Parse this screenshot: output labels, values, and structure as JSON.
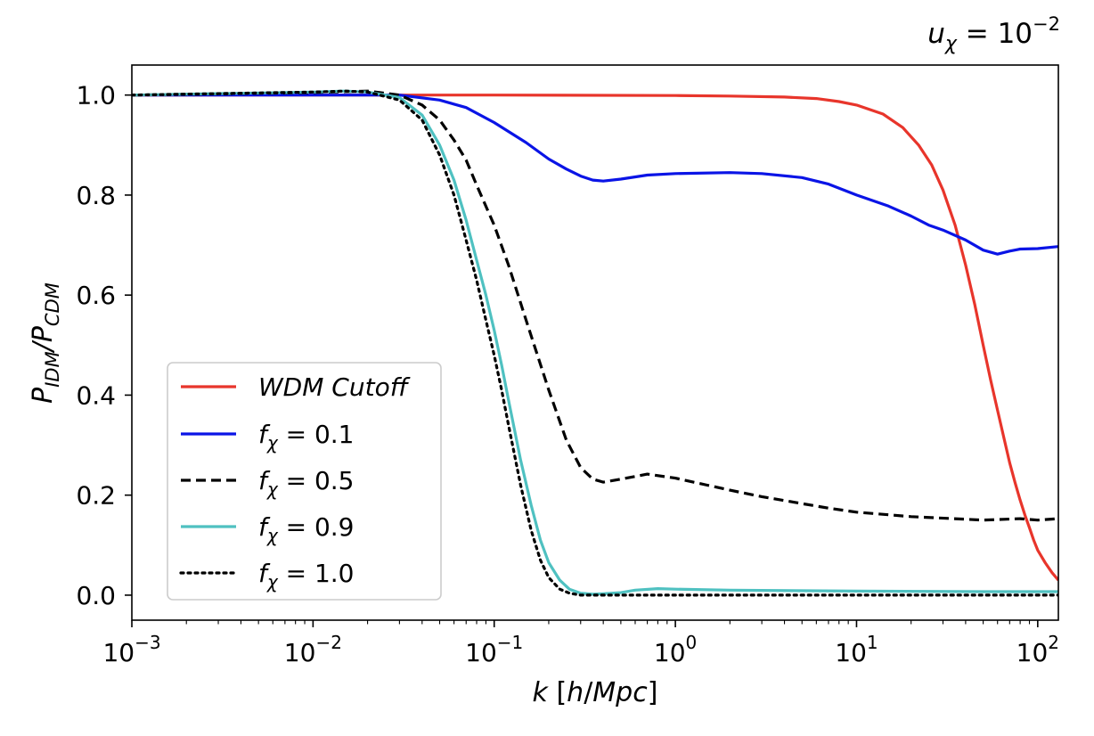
{
  "chart_data": {
    "type": "line",
    "title": "u_χ = 10^-2",
    "xlabel": "k [h/Mpc]",
    "ylabel": "P_IDM/P_CDM",
    "xscale": "log",
    "xlim": [
      0.001,
      130
    ],
    "ylim": [
      -0.05,
      1.06
    ],
    "xticks": [
      0.001,
      0.01,
      0.1,
      1,
      10,
      100
    ],
    "xtick_labels": [
      {
        "base": "10",
        "exp": "−3"
      },
      {
        "base": "10",
        "exp": "−2"
      },
      {
        "base": "10",
        "exp": "−1"
      },
      {
        "base": "10",
        "exp": "0"
      },
      {
        "base": "10",
        "exp": "1"
      },
      {
        "base": "10",
        "exp": "2"
      }
    ],
    "yticks": [
      0.0,
      0.2,
      0.4,
      0.6,
      0.8,
      1.0
    ],
    "ytick_labels": [
      "0.0",
      "0.2",
      "0.4",
      "0.6",
      "0.8",
      "1.0"
    ],
    "grid": false,
    "legend_position": "lower-left",
    "series": [
      {
        "name": "WDM Cutoff",
        "color": "#e8352b",
        "style": "solid",
        "x": [
          0.001,
          0.01,
          0.1,
          1,
          2,
          4,
          6,
          8,
          10,
          14,
          18,
          22,
          26,
          30,
          35,
          40,
          45,
          50,
          55,
          60,
          65,
          70,
          75,
          80,
          85,
          90,
          95,
          100,
          110,
          120,
          130
        ],
        "y": [
          1.0,
          1.0,
          1.0,
          0.999,
          0.998,
          0.996,
          0.993,
          0.987,
          0.98,
          0.962,
          0.935,
          0.9,
          0.86,
          0.81,
          0.74,
          0.66,
          0.58,
          0.5,
          0.43,
          0.37,
          0.315,
          0.265,
          0.225,
          0.19,
          0.16,
          0.135,
          0.11,
          0.09,
          0.065,
          0.045,
          0.03
        ]
      },
      {
        "name": "f_χ = 0.1",
        "color": "#0a14e6",
        "style": "solid",
        "x": [
          0.001,
          0.01,
          0.03,
          0.05,
          0.07,
          0.1,
          0.15,
          0.2,
          0.25,
          0.3,
          0.35,
          0.4,
          0.5,
          0.7,
          1,
          2,
          3,
          5,
          7,
          10,
          15,
          20,
          25,
          30,
          40,
          50,
          60,
          70,
          80,
          100,
          130
        ],
        "y": [
          1.0,
          1.0,
          1.0,
          0.99,
          0.975,
          0.945,
          0.905,
          0.872,
          0.852,
          0.838,
          0.83,
          0.828,
          0.832,
          0.84,
          0.843,
          0.845,
          0.843,
          0.835,
          0.822,
          0.8,
          0.778,
          0.758,
          0.74,
          0.73,
          0.71,
          0.69,
          0.682,
          0.688,
          0.692,
          0.693,
          0.697
        ]
      },
      {
        "name": "f_χ = 0.5",
        "color": "#000000",
        "style": "dashed",
        "x": [
          0.001,
          0.01,
          0.02,
          0.03,
          0.04,
          0.05,
          0.06,
          0.07,
          0.08,
          0.1,
          0.12,
          0.15,
          0.2,
          0.25,
          0.3,
          0.35,
          0.4,
          0.5,
          0.7,
          1,
          1.5,
          2,
          3,
          5,
          7,
          10,
          20,
          50,
          80,
          100,
          130
        ],
        "y": [
          1.0,
          1.005,
          1.008,
          1.0,
          0.98,
          0.95,
          0.91,
          0.87,
          0.82,
          0.74,
          0.66,
          0.55,
          0.41,
          0.31,
          0.255,
          0.232,
          0.226,
          0.232,
          0.242,
          0.234,
          0.22,
          0.21,
          0.197,
          0.183,
          0.174,
          0.166,
          0.157,
          0.15,
          0.153,
          0.15,
          0.153
        ]
      },
      {
        "name": "f_χ = 0.9",
        "color": "#4fc1c1",
        "style": "solid",
        "x": [
          0.001,
          0.01,
          0.015,
          0.02,
          0.03,
          0.04,
          0.05,
          0.06,
          0.07,
          0.08,
          0.09,
          0.1,
          0.11,
          0.12,
          0.14,
          0.16,
          0.18,
          0.2,
          0.23,
          0.26,
          0.3,
          0.35,
          0.4,
          0.5,
          0.6,
          0.8,
          1,
          2,
          10,
          50,
          130
        ],
        "y": [
          1.0,
          1.006,
          1.008,
          1.006,
          0.995,
          0.96,
          0.9,
          0.83,
          0.75,
          0.67,
          0.6,
          0.53,
          0.46,
          0.39,
          0.27,
          0.18,
          0.11,
          0.065,
          0.03,
          0.012,
          0.004,
          0.002,
          0.003,
          0.005,
          0.01,
          0.013,
          0.012,
          0.01,
          0.008,
          0.007,
          0.007
        ]
      },
      {
        "name": "f_χ = 1.0",
        "color": "#000000",
        "style": "dotted",
        "x": [
          0.001,
          0.01,
          0.015,
          0.02,
          0.03,
          0.04,
          0.05,
          0.06,
          0.07,
          0.08,
          0.09,
          0.1,
          0.11,
          0.12,
          0.14,
          0.16,
          0.18,
          0.2,
          0.23,
          0.26,
          0.3,
          0.35,
          0.4,
          1,
          10,
          130
        ],
        "y": [
          1.0,
          1.006,
          1.008,
          1.006,
          0.99,
          0.95,
          0.88,
          0.8,
          0.71,
          0.63,
          0.55,
          0.48,
          0.41,
          0.34,
          0.22,
          0.13,
          0.07,
          0.035,
          0.012,
          0.004,
          0.0,
          0.0,
          0.0,
          0.0,
          0.0,
          0.0
        ]
      }
    ]
  }
}
